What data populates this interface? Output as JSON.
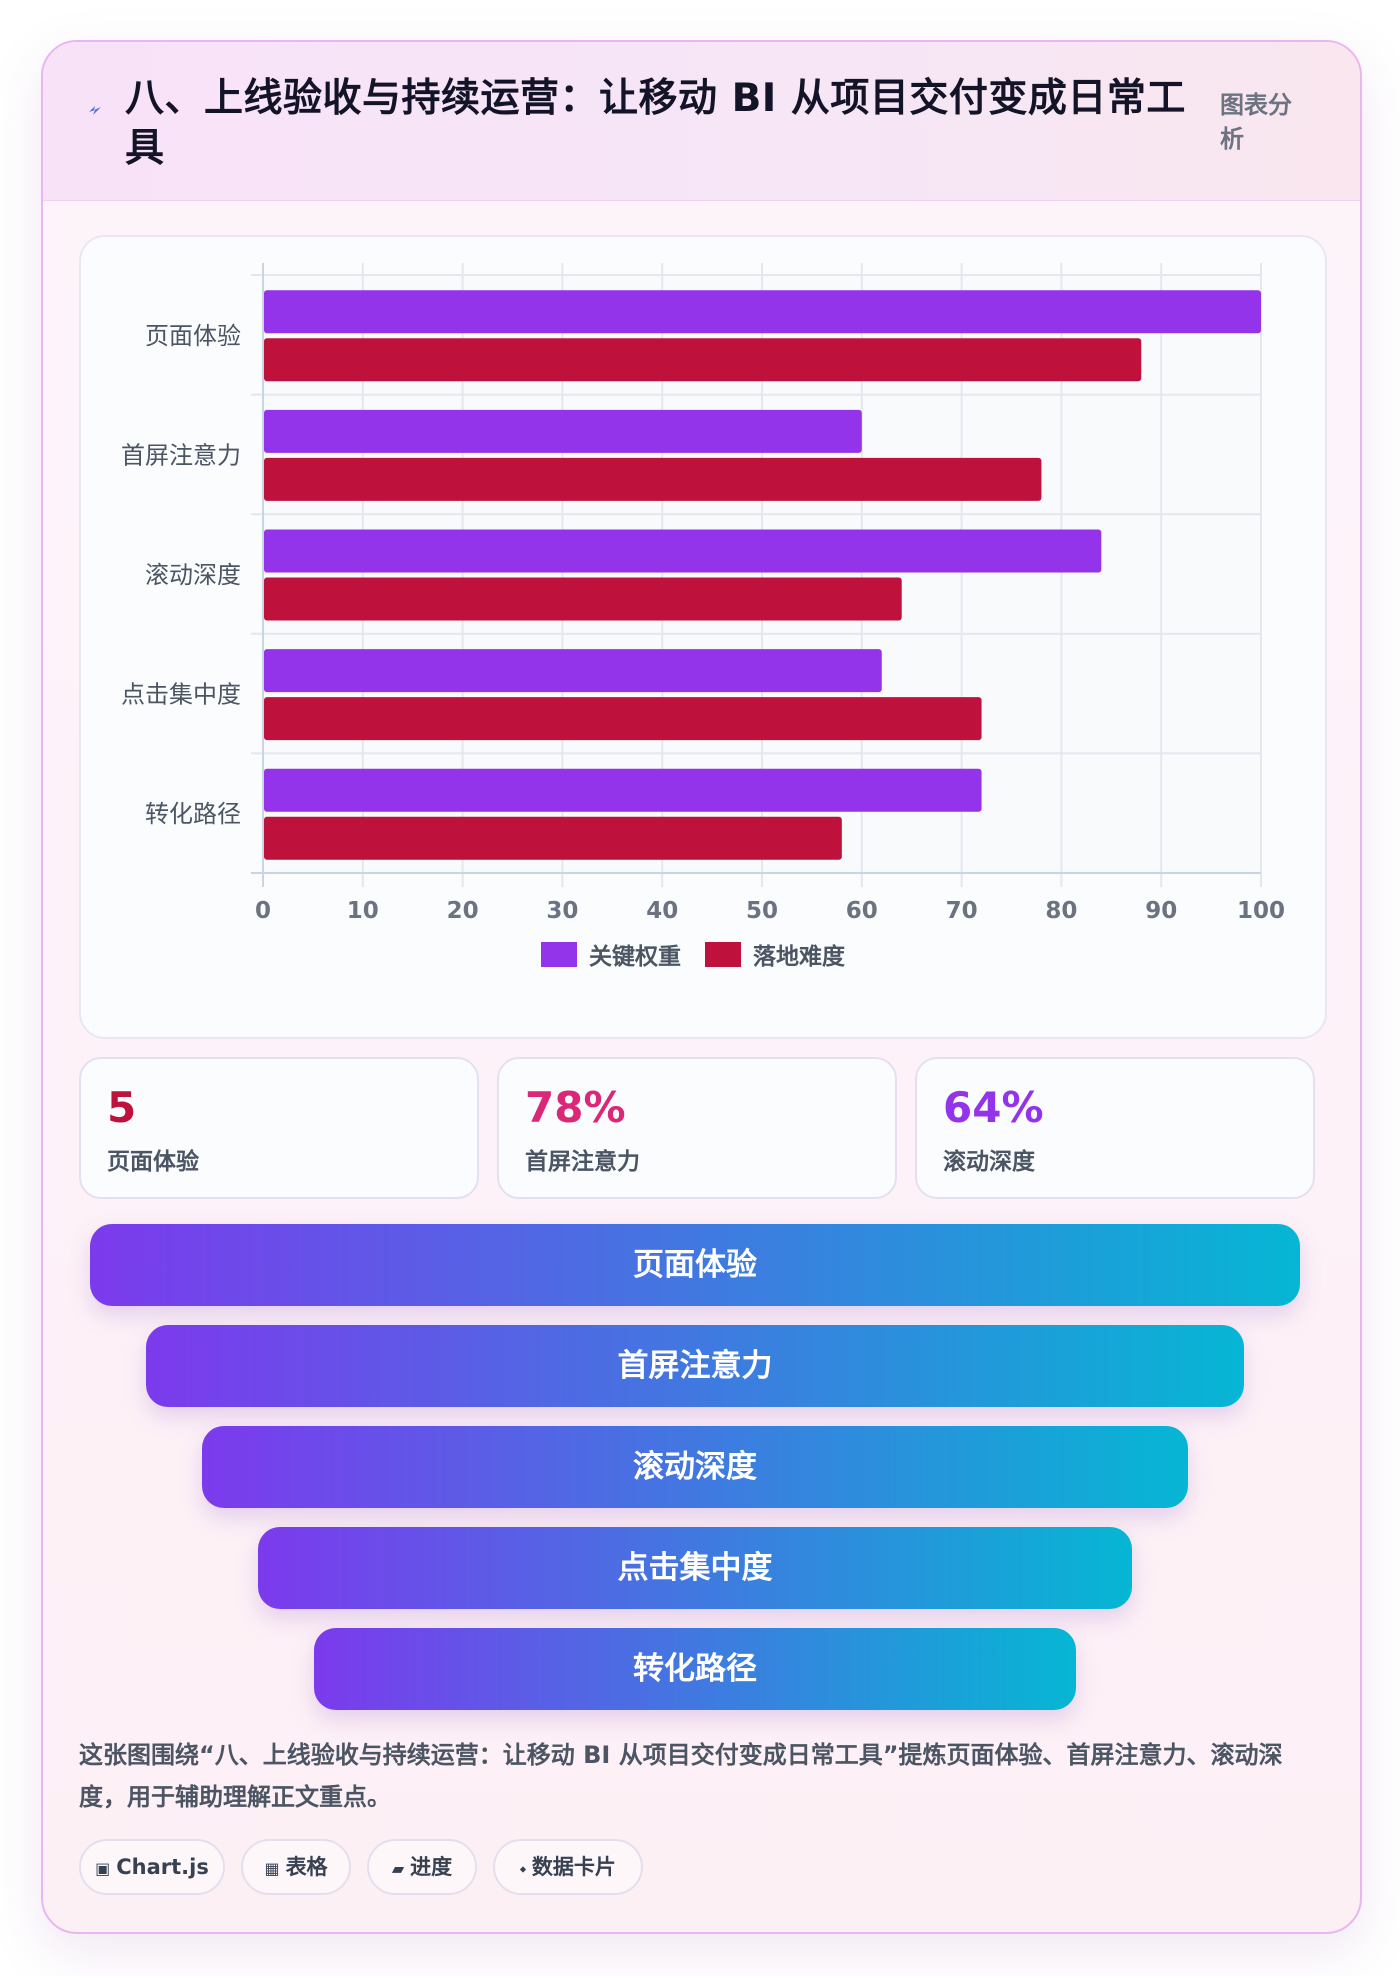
{
  "header": {
    "icon": "lightning-icon",
    "title": "八、上线验收与持续运营：让移动 BI 从项目交付变成日常工具",
    "tag": "图表分析"
  },
  "chart_data": {
    "type": "bar",
    "orientation": "horizontal",
    "categories": [
      "页面体验",
      "首屏注意力",
      "滚动深度",
      "点击集中度",
      "转化路径"
    ],
    "series": [
      {
        "name": "关键权重",
        "values": [
          100,
          60,
          84,
          62,
          72
        ],
        "color": "#9333ea"
      },
      {
        "name": "落地难度",
        "values": [
          88,
          78,
          64,
          72,
          58
        ],
        "color": "#be123c"
      }
    ],
    "xlim": [
      0,
      100
    ],
    "xticks": [
      "0",
      "10",
      "20",
      "30",
      "40",
      "50",
      "60",
      "70",
      "80",
      "90",
      "100"
    ],
    "grid": true,
    "legend_position": "bottom-center"
  },
  "stats": [
    {
      "value": "5",
      "label": "页面体验",
      "color": "#be123c"
    },
    {
      "value": "78%",
      "label": "首屏注意力",
      "color": "#db2777"
    },
    {
      "value": "64%",
      "label": "滚动深度",
      "color": "#9333ea"
    }
  ],
  "funnel": [
    "页面体验",
    "首屏注意力",
    "滚动深度",
    "点击集中度",
    "转化路径"
  ],
  "summary": "这张图围绕“八、上线验收与持续运营：让移动 BI 从项目交付变成日常工具”提炼页面体验、首屏注意力、滚动深度，用于辅助理解正文重点。",
  "chips": [
    {
      "icon": "▣",
      "label": "Chart.js"
    },
    {
      "icon": "▦",
      "label": "表格"
    },
    {
      "icon": "▰",
      "label": "进度"
    },
    {
      "icon": "⬩",
      "label": "数据卡片"
    }
  ]
}
